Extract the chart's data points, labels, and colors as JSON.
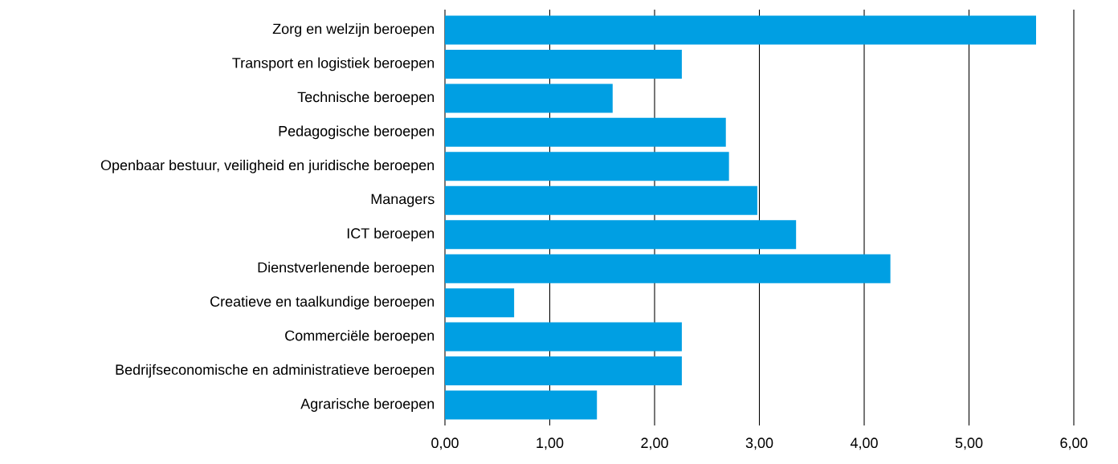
{
  "chart_data": {
    "type": "bar",
    "orientation": "horizontal",
    "categories": [
      "Zorg en welzijn beroepen",
      "Transport en logistiek beroepen",
      "Technische beroepen",
      "Pedagogische beroepen",
      "Openbaar bestuur, veiligheid en juridische beroepen",
      "Managers",
      "ICT beroepen",
      "Dienstverlenende beroepen",
      "Creatieve en taalkundige beroepen",
      "Commerciële beroepen",
      "Bedrijfseconomische en administratieve beroepen",
      "Agrarische beroepen"
    ],
    "values": [
      5.64,
      2.26,
      1.6,
      2.68,
      2.71,
      2.98,
      3.35,
      4.25,
      0.66,
      2.26,
      2.26,
      1.45
    ],
    "color": "#009fe3",
    "xlim": [
      0,
      6
    ],
    "xticks": [
      {
        "value": 0,
        "label": "0,00"
      },
      {
        "value": 1,
        "label": "1,00"
      },
      {
        "value": 2,
        "label": "2,00"
      },
      {
        "value": 3,
        "label": "3,00"
      },
      {
        "value": 4,
        "label": "4,00"
      },
      {
        "value": 5,
        "label": "5,00"
      },
      {
        "value": 6,
        "label": "6,00"
      }
    ],
    "grid": "x"
  }
}
